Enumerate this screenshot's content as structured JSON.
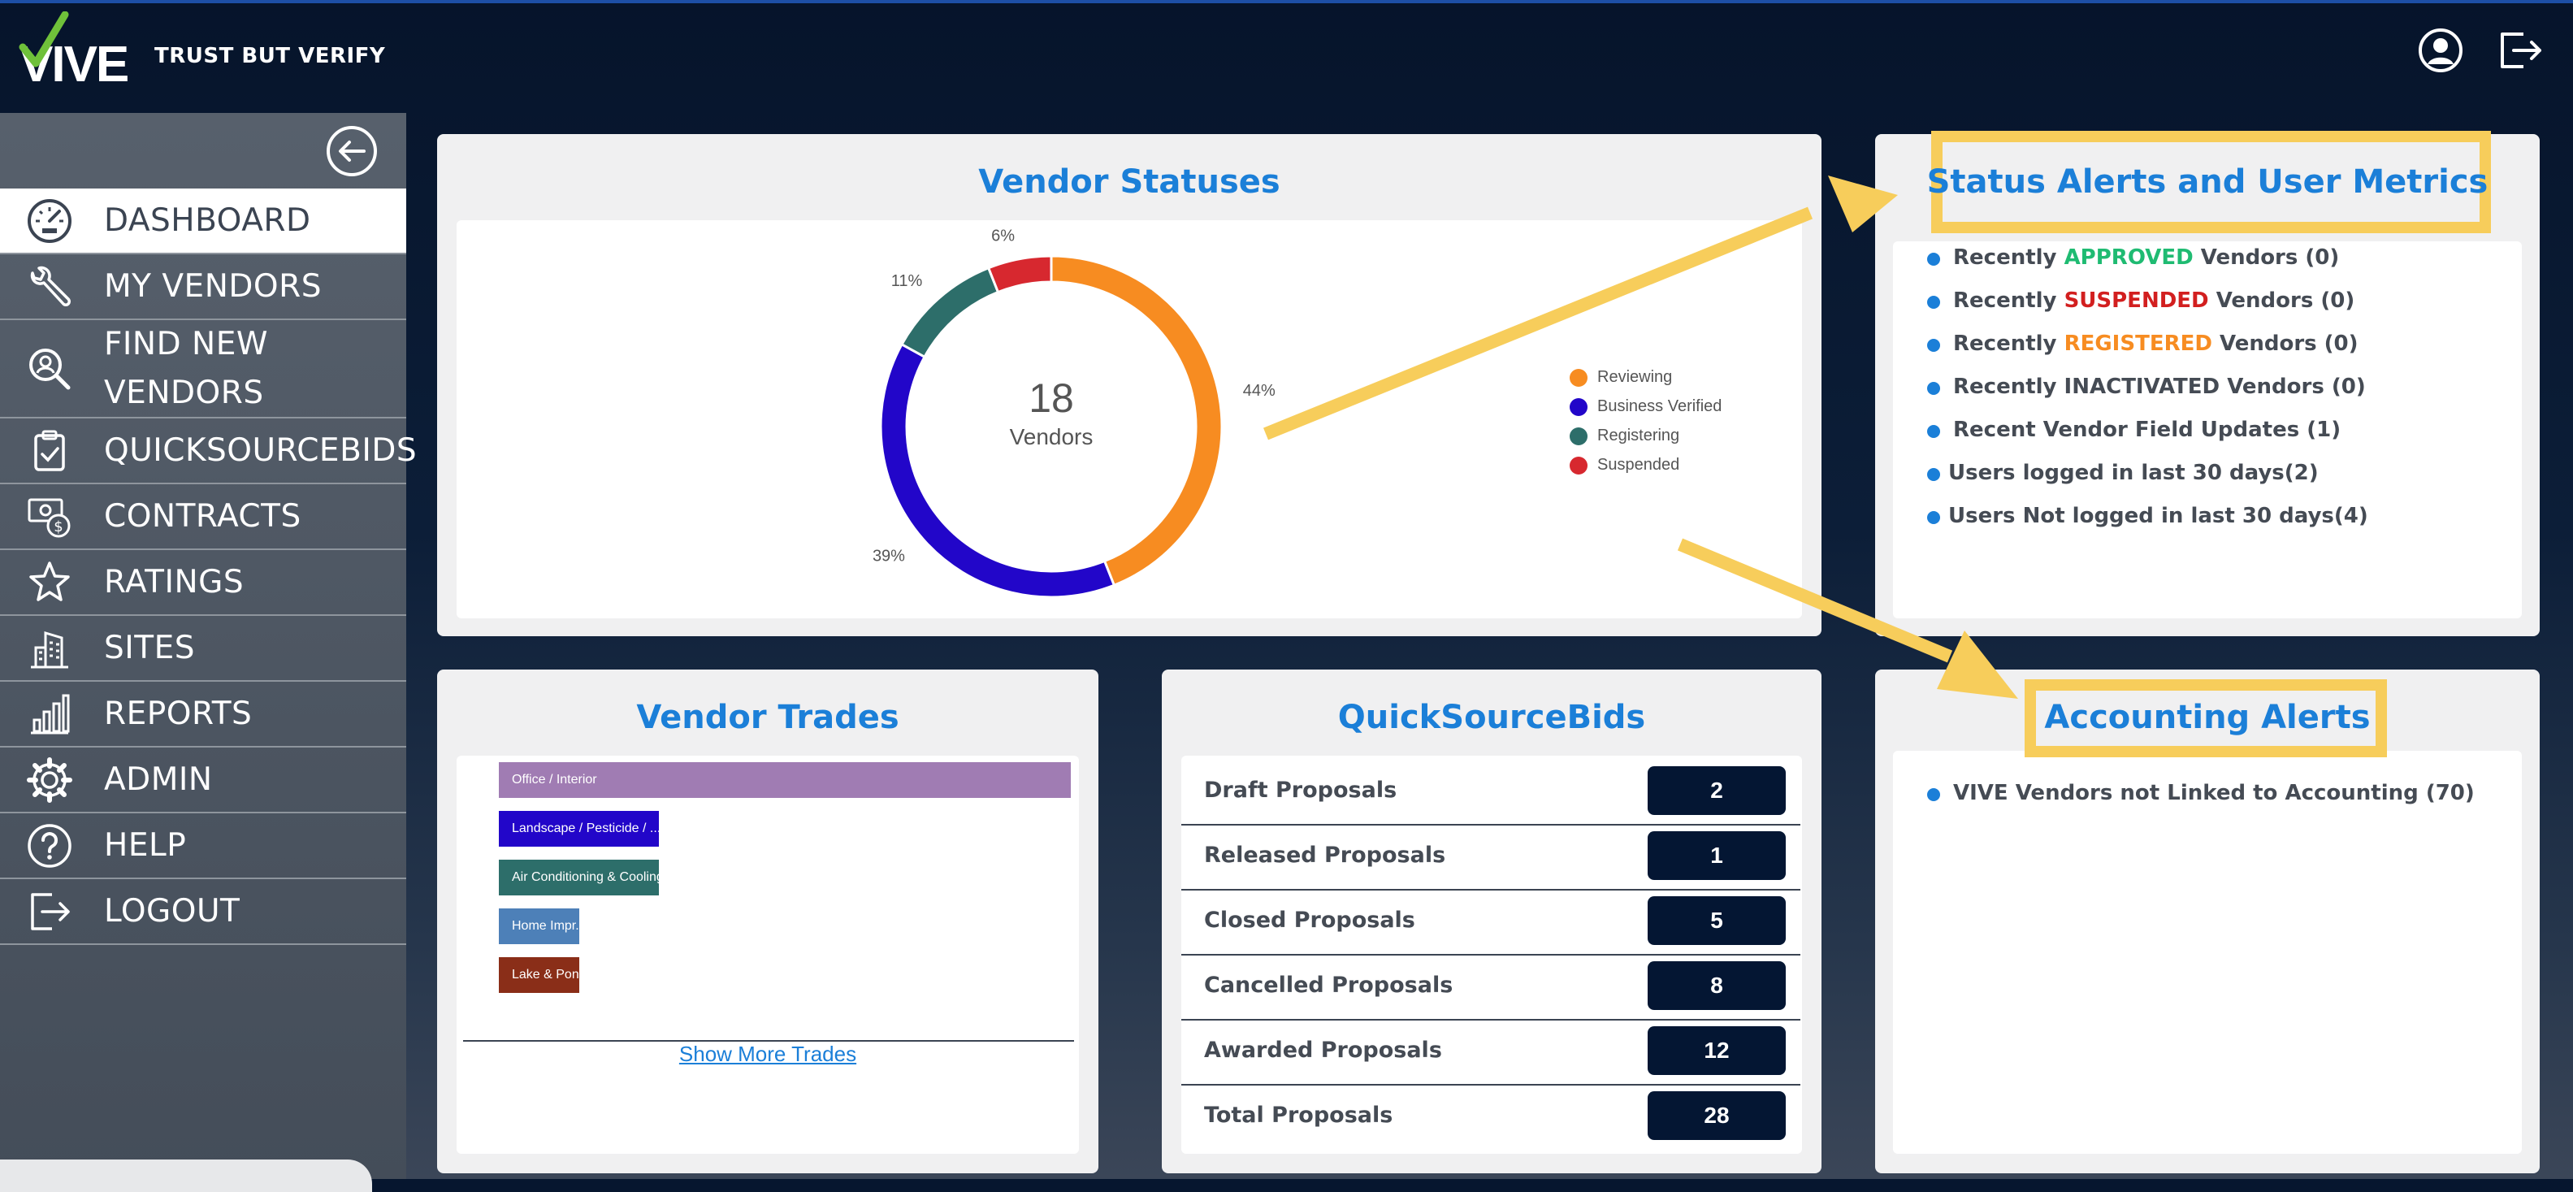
{
  "header": {
    "logo_text": "VIVE",
    "tagline": "TRUST BUT VERIFY"
  },
  "sidebar": {
    "items": [
      {
        "label": "DASHBOARD",
        "icon": "dashboard-gauge-icon"
      },
      {
        "label": "MY VENDORS",
        "icon": "wrench-icon"
      },
      {
        "label": "FIND NEW",
        "label2": "VENDORS",
        "icon": "search-person-icon"
      },
      {
        "label": "QUICKSOURCEBIDS",
        "icon": "clipboard-check-icon"
      },
      {
        "label": "CONTRACTS",
        "icon": "money-contract-icon"
      },
      {
        "label": "RATINGS",
        "icon": "star-icon"
      },
      {
        "label": "SITES",
        "icon": "building-icon"
      },
      {
        "label": "REPORTS",
        "icon": "bar-chart-icon"
      },
      {
        "label": "ADMIN",
        "icon": "gear-icon"
      },
      {
        "label": "HELP",
        "icon": "help-circle-icon"
      },
      {
        "label": "LOGOUT",
        "icon": "logout-icon"
      }
    ]
  },
  "vendor_statuses": {
    "title": "Vendor Statuses",
    "total": "18",
    "total_label": "Vendors",
    "legend": [
      "Reviewing",
      "Business Verified",
      "Registering",
      "Suspended"
    ]
  },
  "chart_data": {
    "type": "pie",
    "donut": true,
    "categories": [
      "Reviewing",
      "Business Verified",
      "Registering",
      "Suspended"
    ],
    "values": [
      44,
      39,
      11,
      6
    ],
    "labels": [
      "44%",
      "39%",
      "11%",
      "6%"
    ],
    "colors": [
      "#f78c21",
      "#2206c9",
      "#2d6e6a",
      "#d7282f"
    ]
  },
  "status_alerts": {
    "title": "Status Alerts and User Metrics",
    "items": [
      {
        "pre": "Recently ",
        "hl": "APPROVED",
        "post": " Vendors (0)"
      },
      {
        "pre": "Recently ",
        "hl": "SUSPENDED",
        "post": " Vendors (0)"
      },
      {
        "pre": "Recently ",
        "hl": "REGISTERED",
        "post": " Vendors (0)"
      },
      {
        "text": "Recently INACTIVATED Vendors (0)"
      },
      {
        "text": "Recent Vendor Field Updates (1)"
      },
      {
        "text": "Users logged in last 30 days(2)"
      },
      {
        "text": "Users Not logged in last 30 days(4)"
      }
    ]
  },
  "vendor_trades": {
    "title": "Vendor Trades",
    "bars": [
      {
        "label": "Office / Interior",
        "fraction": 1.0,
        "color": "#a07cb3"
      },
      {
        "label": "Landscape / Pesticide / ...",
        "fraction": 0.28,
        "color": "#2206c9"
      },
      {
        "label": "Air Conditioning & Cooling",
        "fraction": 0.28,
        "color": "#2d6e6a"
      },
      {
        "label": "Home Impr...",
        "fraction": 0.14,
        "color": "#4d80b8"
      },
      {
        "label": "Lake & Pond",
        "fraction": 0.14,
        "color": "#8a2e18"
      }
    ],
    "show_more": "Show More Trades"
  },
  "quicksourcebids": {
    "title": "QuickSourceBids",
    "rows": [
      {
        "label": "Draft Proposals",
        "value": "2"
      },
      {
        "label": "Released Proposals",
        "value": "1"
      },
      {
        "label": "Closed Proposals",
        "value": "5"
      },
      {
        "label": "Cancelled Proposals",
        "value": "8"
      },
      {
        "label": "Awarded Proposals",
        "value": "12"
      },
      {
        "label": "Total Proposals",
        "value": "28"
      }
    ]
  },
  "accounting": {
    "title": "Accounting Alerts",
    "items": [
      "VIVE Vendors not Linked to Accounting (70)"
    ]
  },
  "colors": {
    "accent": "#1b7fd8",
    "highlight_box": "#f7cd5b",
    "approved": "#1fbb72",
    "suspended": "#d21f1f",
    "registered": "#f78c21",
    "badge": "#041633"
  }
}
